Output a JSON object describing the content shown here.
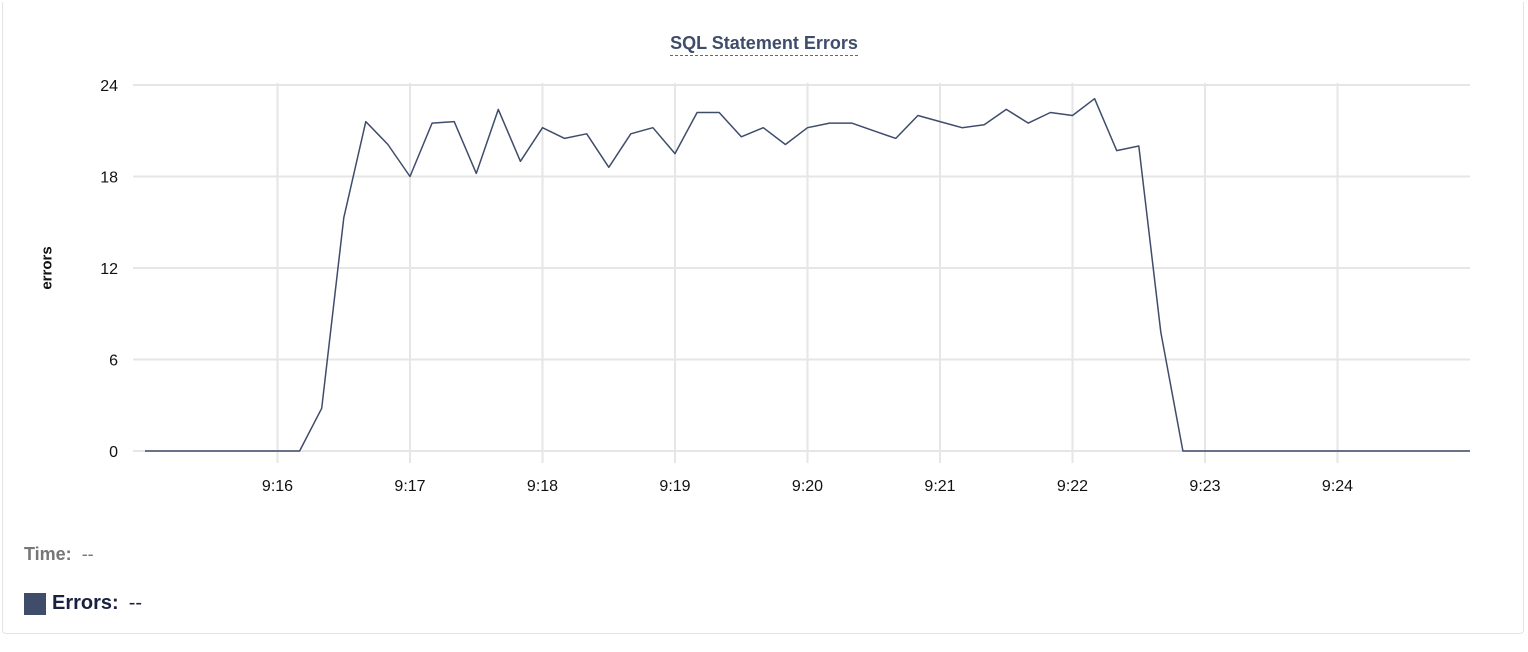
{
  "chart_data": {
    "type": "line",
    "title": "SQL Statement Errors",
    "ylabel": "errors",
    "xlabel": "",
    "ylim": [
      0,
      24
    ],
    "xlim": [
      "9:15:00",
      "9:25:00"
    ],
    "yticks": [
      "0",
      "6",
      "12",
      "18",
      "24"
    ],
    "xticks": [
      "9:16",
      "9:17",
      "9:18",
      "9:19",
      "9:20",
      "9:21",
      "9:22",
      "9:23",
      "9:24"
    ],
    "grid": true,
    "series": [
      {
        "name": "Errors",
        "color": "#3f4d6b",
        "x": [
          "9:15:00",
          "9:15:10",
          "9:15:20",
          "9:15:30",
          "9:15:40",
          "9:15:50",
          "9:16:00",
          "9:16:10",
          "9:16:20",
          "9:16:30",
          "9:16:40",
          "9:16:50",
          "9:17:00",
          "9:17:10",
          "9:17:20",
          "9:17:30",
          "9:17:40",
          "9:17:50",
          "9:18:00",
          "9:18:10",
          "9:18:20",
          "9:18:30",
          "9:18:40",
          "9:18:50",
          "9:19:00",
          "9:19:10",
          "9:19:20",
          "9:19:30",
          "9:19:40",
          "9:19:50",
          "9:20:00",
          "9:20:10",
          "9:20:20",
          "9:20:30",
          "9:20:40",
          "9:20:50",
          "9:21:00",
          "9:21:10",
          "9:21:20",
          "9:21:30",
          "9:21:40",
          "9:21:50",
          "9:22:00",
          "9:22:10",
          "9:22:20",
          "9:22:30",
          "9:22:40",
          "9:22:50",
          "9:23:00",
          "9:23:10",
          "9:23:20",
          "9:23:30",
          "9:23:40",
          "9:23:50",
          "9:24:00",
          "9:24:10",
          "9:24:20",
          "9:24:30",
          "9:24:40",
          "9:24:50",
          "9:25:00"
        ],
        "values": [
          0,
          0,
          0,
          0,
          0,
          0,
          0,
          0,
          2.8,
          15.3,
          21.6,
          20.1,
          18.0,
          21.5,
          21.6,
          18.2,
          22.4,
          19.0,
          21.2,
          20.5,
          20.8,
          18.6,
          20.8,
          21.2,
          19.5,
          22.2,
          22.2,
          20.6,
          21.2,
          20.1,
          21.2,
          21.5,
          21.5,
          21.0,
          20.5,
          22.0,
          21.6,
          21.2,
          21.4,
          22.4,
          21.5,
          22.2,
          22.0,
          23.1,
          19.7,
          20.0,
          7.8,
          0,
          0,
          0,
          0,
          0,
          0,
          0,
          0,
          0,
          0,
          0,
          0,
          0,
          0
        ]
      }
    ]
  },
  "readout": {
    "time_label": "Time:",
    "time_value": "--",
    "errors_label": "Errors:",
    "errors_value": "--"
  }
}
